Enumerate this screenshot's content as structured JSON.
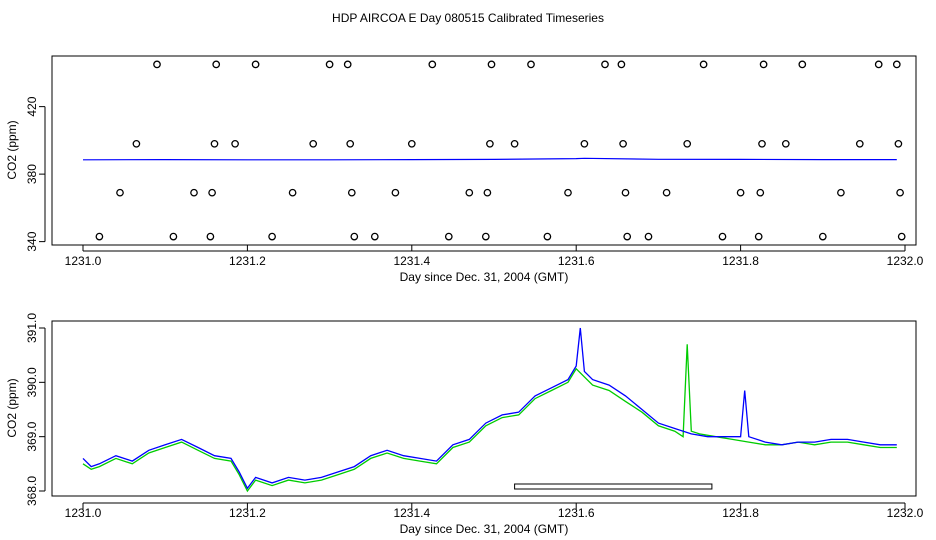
{
  "title": "HDP AIRCOA E  Day 080515  Calibrated Timeseries",
  "colors": {
    "series_primary": "#0000ff",
    "series_secondary": "#00cc00",
    "points": "#000000"
  },
  "chart_data": [
    {
      "type": "scatter",
      "xlabel": "Day since Dec. 31, 2004 (GMT)",
      "ylabel": "CO2 (ppm)",
      "xlim": [
        1231.0,
        1232.0
      ],
      "ylim": [
        338,
        450
      ],
      "xticks": [
        "1231.0",
        "1231.2",
        "1231.4",
        "1231.6",
        "1231.8",
        "1232.0"
      ],
      "yticks": [
        "340",
        "380",
        "420"
      ],
      "points": [
        [
          1231.02,
          343
        ],
        [
          1231.045,
          369
        ],
        [
          1231.065,
          398
        ],
        [
          1231.09,
          445
        ],
        [
          1231.11,
          343
        ],
        [
          1231.135,
          369
        ],
        [
          1231.155,
          343
        ],
        [
          1231.157,
          369
        ],
        [
          1231.16,
          398
        ],
        [
          1231.162,
          445
        ],
        [
          1231.185,
          398
        ],
        [
          1231.21,
          445
        ],
        [
          1231.23,
          343
        ],
        [
          1231.255,
          369
        ],
        [
          1231.28,
          398
        ],
        [
          1231.3,
          445
        ],
        [
          1231.322,
          445
        ],
        [
          1231.325,
          398
        ],
        [
          1231.327,
          369
        ],
        [
          1231.33,
          343
        ],
        [
          1231.355,
          343
        ],
        [
          1231.38,
          369
        ],
        [
          1231.4,
          398
        ],
        [
          1231.425,
          445
        ],
        [
          1231.445,
          343
        ],
        [
          1231.47,
          369
        ],
        [
          1231.49,
          343
        ],
        [
          1231.492,
          369
        ],
        [
          1231.495,
          398
        ],
        [
          1231.497,
          445
        ],
        [
          1231.525,
          398
        ],
        [
          1231.545,
          445
        ],
        [
          1231.565,
          343
        ],
        [
          1231.59,
          369
        ],
        [
          1231.61,
          398
        ],
        [
          1231.635,
          445
        ],
        [
          1231.655,
          445
        ],
        [
          1231.657,
          398
        ],
        [
          1231.66,
          369
        ],
        [
          1231.662,
          343
        ],
        [
          1231.688,
          343
        ],
        [
          1231.71,
          369
        ],
        [
          1231.735,
          398
        ],
        [
          1231.755,
          445
        ],
        [
          1231.778,
          343
        ],
        [
          1231.8,
          369
        ],
        [
          1231.822,
          343
        ],
        [
          1231.824,
          369
        ],
        [
          1231.826,
          398
        ],
        [
          1231.828,
          445
        ],
        [
          1231.855,
          398
        ],
        [
          1231.875,
          445
        ],
        [
          1231.9,
          343
        ],
        [
          1231.922,
          369
        ],
        [
          1231.945,
          398
        ],
        [
          1231.968,
          445
        ],
        [
          1231.99,
          445
        ],
        [
          1231.992,
          398
        ],
        [
          1231.994,
          369
        ],
        [
          1231.996,
          343
        ]
      ],
      "series": [
        {
          "color": "#0000ff",
          "x": [
            1231.0,
            1231.1,
            1231.2,
            1231.3,
            1231.4,
            1231.5,
            1231.6,
            1231.61,
            1231.7,
            1231.8,
            1231.9,
            1231.99
          ],
          "y": [
            388.5,
            388.6,
            388.5,
            388.5,
            388.6,
            388.7,
            389.2,
            389.4,
            388.8,
            388.7,
            388.6,
            388.6
          ]
        }
      ]
    },
    {
      "type": "line",
      "xlabel": "Day since Dec. 31, 2004 (GMT)",
      "ylabel": "CO2 (ppm)",
      "xlim": [
        1231.0,
        1232.0
      ],
      "ylim": [
        367.9,
        391.05
      ],
      "xticks": [
        "1231.0",
        "1231.2",
        "1231.4",
        "1231.6",
        "1231.8",
        "1232.0"
      ],
      "yticks": [
        "368.0",
        "369.0",
        "390.0",
        "391.0"
      ],
      "annotation_bar_x": [
        1231.525,
        1231.765
      ],
      "series": [
        {
          "color": "#00cc00",
          "x": [
            1231.0,
            1231.01,
            1231.02,
            1231.04,
            1231.06,
            1231.08,
            1231.1,
            1231.12,
            1231.14,
            1231.16,
            1231.18,
            1231.19,
            1231.2,
            1231.21,
            1231.23,
            1231.25,
            1231.27,
            1231.29,
            1231.31,
            1231.33,
            1231.35,
            1231.37,
            1231.39,
            1231.41,
            1231.43,
            1231.45,
            1231.47,
            1231.49,
            1231.51,
            1231.53,
            1231.55,
            1231.57,
            1231.59,
            1231.6,
            1231.61,
            1231.62,
            1231.64,
            1231.66,
            1231.68,
            1231.7,
            1231.72,
            1231.73,
            1231.735,
            1231.74,
            1231.75,
            1231.77,
            1231.79,
            1231.81,
            1231.83,
            1231.85,
            1231.87,
            1231.89,
            1231.91,
            1231.93,
            1231.95,
            1231.97,
            1231.99
          ],
          "y": [
            388.5,
            388.4,
            388.45,
            388.6,
            388.5,
            388.7,
            388.8,
            388.9,
            388.75,
            388.6,
            388.55,
            388.3,
            388.0,
            388.2,
            388.1,
            388.2,
            388.15,
            388.2,
            388.3,
            388.4,
            388.6,
            388.7,
            388.6,
            388.55,
            388.5,
            388.8,
            388.9,
            389.2,
            389.35,
            389.4,
            389.7,
            389.85,
            390.0,
            390.25,
            390.1,
            389.95,
            389.85,
            389.65,
            389.45,
            389.2,
            389.1,
            389.0,
            390.7,
            389.1,
            389.05,
            389.0,
            388.95,
            388.9,
            388.85,
            388.85,
            388.9,
            388.85,
            388.9,
            388.9,
            388.85,
            388.8,
            388.8
          ]
        },
        {
          "color": "#0000ff",
          "x": [
            1231.0,
            1231.01,
            1231.02,
            1231.04,
            1231.06,
            1231.08,
            1231.1,
            1231.12,
            1231.14,
            1231.16,
            1231.18,
            1231.19,
            1231.2,
            1231.21,
            1231.23,
            1231.25,
            1231.27,
            1231.29,
            1231.31,
            1231.33,
            1231.35,
            1231.37,
            1231.39,
            1231.41,
            1231.43,
            1231.45,
            1231.47,
            1231.49,
            1231.51,
            1231.53,
            1231.55,
            1231.57,
            1231.59,
            1231.6,
            1231.605,
            1231.61,
            1231.62,
            1231.64,
            1231.66,
            1231.68,
            1231.7,
            1231.72,
            1231.74,
            1231.76,
            1231.78,
            1231.8,
            1231.805,
            1231.81,
            1231.83,
            1231.85,
            1231.87,
            1231.89,
            1231.91,
            1231.93,
            1231.95,
            1231.97,
            1231.99
          ],
          "y": [
            388.6,
            388.45,
            388.5,
            388.65,
            388.55,
            388.75,
            388.85,
            388.95,
            388.8,
            388.65,
            388.6,
            388.35,
            388.05,
            388.25,
            388.15,
            388.25,
            388.2,
            388.25,
            388.35,
            388.45,
            388.65,
            388.75,
            388.65,
            388.6,
            388.55,
            388.85,
            388.95,
            389.25,
            389.4,
            389.45,
            389.75,
            389.9,
            390.05,
            390.3,
            391.0,
            390.2,
            390.05,
            389.95,
            389.75,
            389.5,
            389.25,
            389.15,
            389.05,
            389.0,
            389.0,
            389.0,
            389.85,
            389.0,
            388.9,
            388.85,
            388.9,
            388.9,
            388.95,
            388.95,
            388.9,
            388.85,
            388.85
          ]
        }
      ]
    }
  ]
}
